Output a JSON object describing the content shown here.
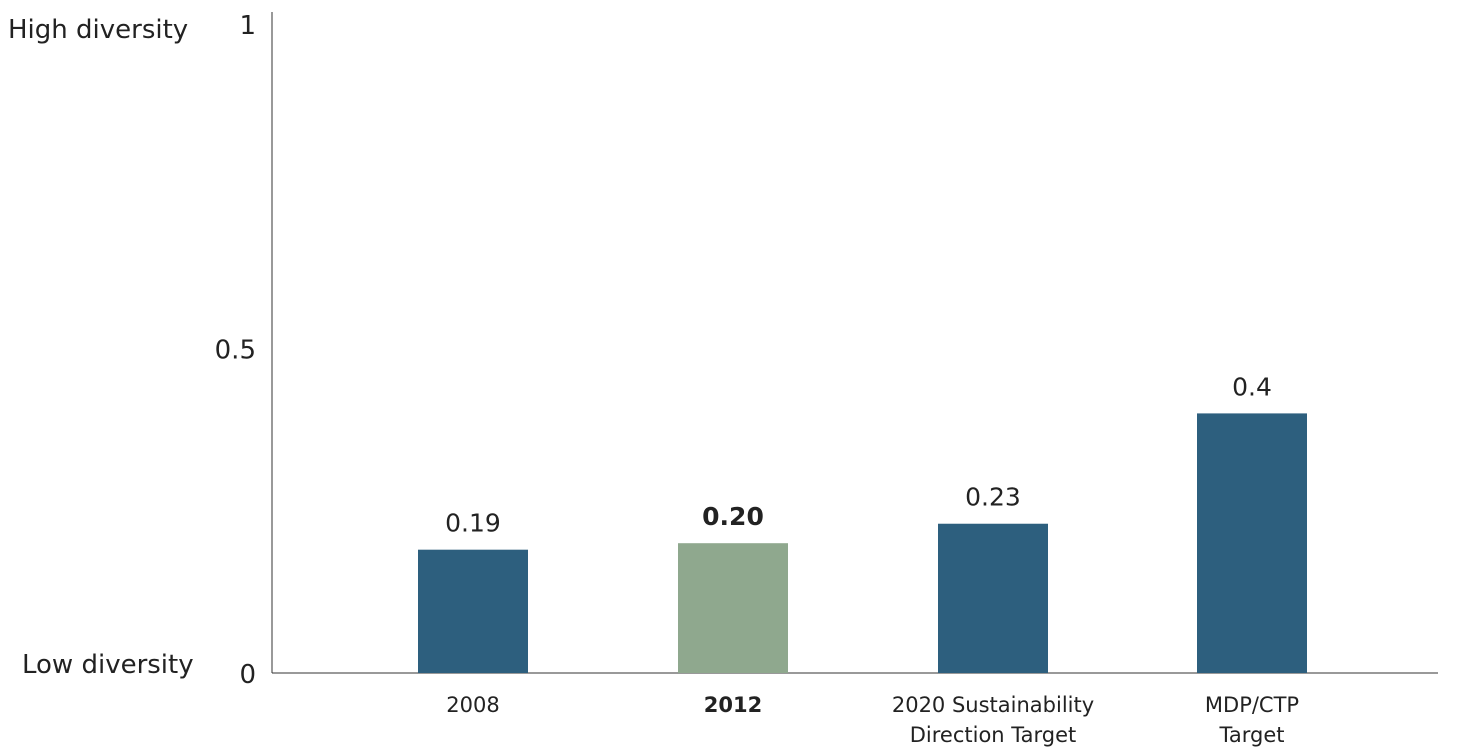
{
  "chart_data": {
    "type": "bar",
    "categories": [
      {
        "lines": [
          "2008"
        ],
        "bold": false
      },
      {
        "lines": [
          "2012"
        ],
        "bold": true
      },
      {
        "lines": [
          "2020 Sustainability",
          "Direction Target"
        ],
        "bold": false
      },
      {
        "lines": [
          "MDP/CTP",
          "Target"
        ],
        "bold": false
      }
    ],
    "values": [
      0.19,
      0.2,
      0.23,
      0.4
    ],
    "value_labels": [
      "0.19",
      "0.20",
      "0.23",
      "0.4"
    ],
    "bar_colors": [
      "#2d5f7e",
      "#8fa88e",
      "#2d5f7e",
      "#2d5f7e"
    ],
    "ylim": [
      0,
      1
    ],
    "yticks": [
      {
        "value": 0,
        "label": "0"
      },
      {
        "value": 0.5,
        "label": "0.5"
      },
      {
        "value": 1,
        "label": "1"
      }
    ],
    "ylabel_top": "High diversity",
    "ylabel_bottom": "Low diversity",
    "grid": false
  }
}
